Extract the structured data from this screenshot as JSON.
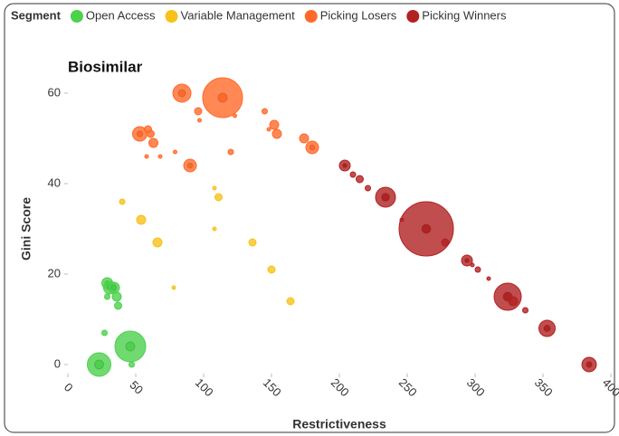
{
  "chart_data": {
    "type": "scatter",
    "title": "Biosimilar",
    "legend_title": "Segment",
    "xlabel": "Restrictiveness",
    "ylabel": "Gini Score",
    "xlim": [
      0,
      400
    ],
    "ylim": [
      -2,
      64
    ],
    "xticks": [
      0,
      50,
      100,
      150,
      200,
      250,
      300,
      350,
      400
    ],
    "yticks": [
      0,
      20,
      40,
      60
    ],
    "grid": false,
    "legend": "top",
    "series": [
      {
        "name": "Open Access",
        "color": "#4cd14c",
        "x": [
          23,
          46,
          47,
          27,
          29,
          31,
          34,
          36,
          37,
          29
        ],
        "values": [
          0,
          4,
          0,
          7,
          18,
          17,
          17,
          15,
          13,
          15
        ],
        "sizes": [
          13,
          17,
          3,
          3,
          6,
          7,
          6,
          5,
          4,
          3
        ]
      },
      {
        "name": "Variable Management",
        "color": "#f7c21a",
        "x": [
          40,
          54,
          66,
          78,
          108,
          111,
          108,
          136,
          150,
          164
        ],
        "values": [
          36,
          32,
          27,
          17,
          39,
          37,
          30,
          27,
          21,
          14
        ],
        "sizes": [
          3,
          5,
          5,
          2,
          2,
          4,
          2,
          4,
          4,
          4
        ]
      },
      {
        "name": "Picking Losers",
        "color": "#ff6a2a",
        "x": [
          84,
          114,
          96,
          97,
          123,
          145,
          152,
          148,
          154,
          53,
          59,
          61,
          63,
          58,
          68,
          79,
          120,
          90,
          174,
          180
        ],
        "values": [
          60,
          59,
          56,
          54,
          55,
          56,
          53,
          52,
          51,
          51,
          52,
          51,
          49,
          46,
          46,
          47,
          47,
          44,
          50,
          48
        ],
        "sizes": [
          10,
          22,
          4,
          2,
          2,
          3,
          5,
          2,
          5,
          8,
          4,
          4,
          5,
          2,
          2,
          2,
          3,
          7,
          5,
          7
        ]
      },
      {
        "name": "Picking Winners",
        "color": "#b22222",
        "x": [
          204,
          210,
          215,
          221,
          234,
          246,
          264,
          278,
          294,
          298,
          302,
          310,
          324,
          328,
          337,
          353,
          384
        ],
        "values": [
          44,
          42,
          41,
          39,
          37,
          32,
          30,
          27,
          23,
          22,
          21,
          19,
          15,
          14,
          12,
          8,
          0
        ],
        "sizes": [
          6,
          3,
          4,
          3,
          11,
          2,
          30,
          4,
          6,
          2,
          3,
          2,
          15,
          5,
          3,
          9,
          8
        ]
      }
    ]
  }
}
